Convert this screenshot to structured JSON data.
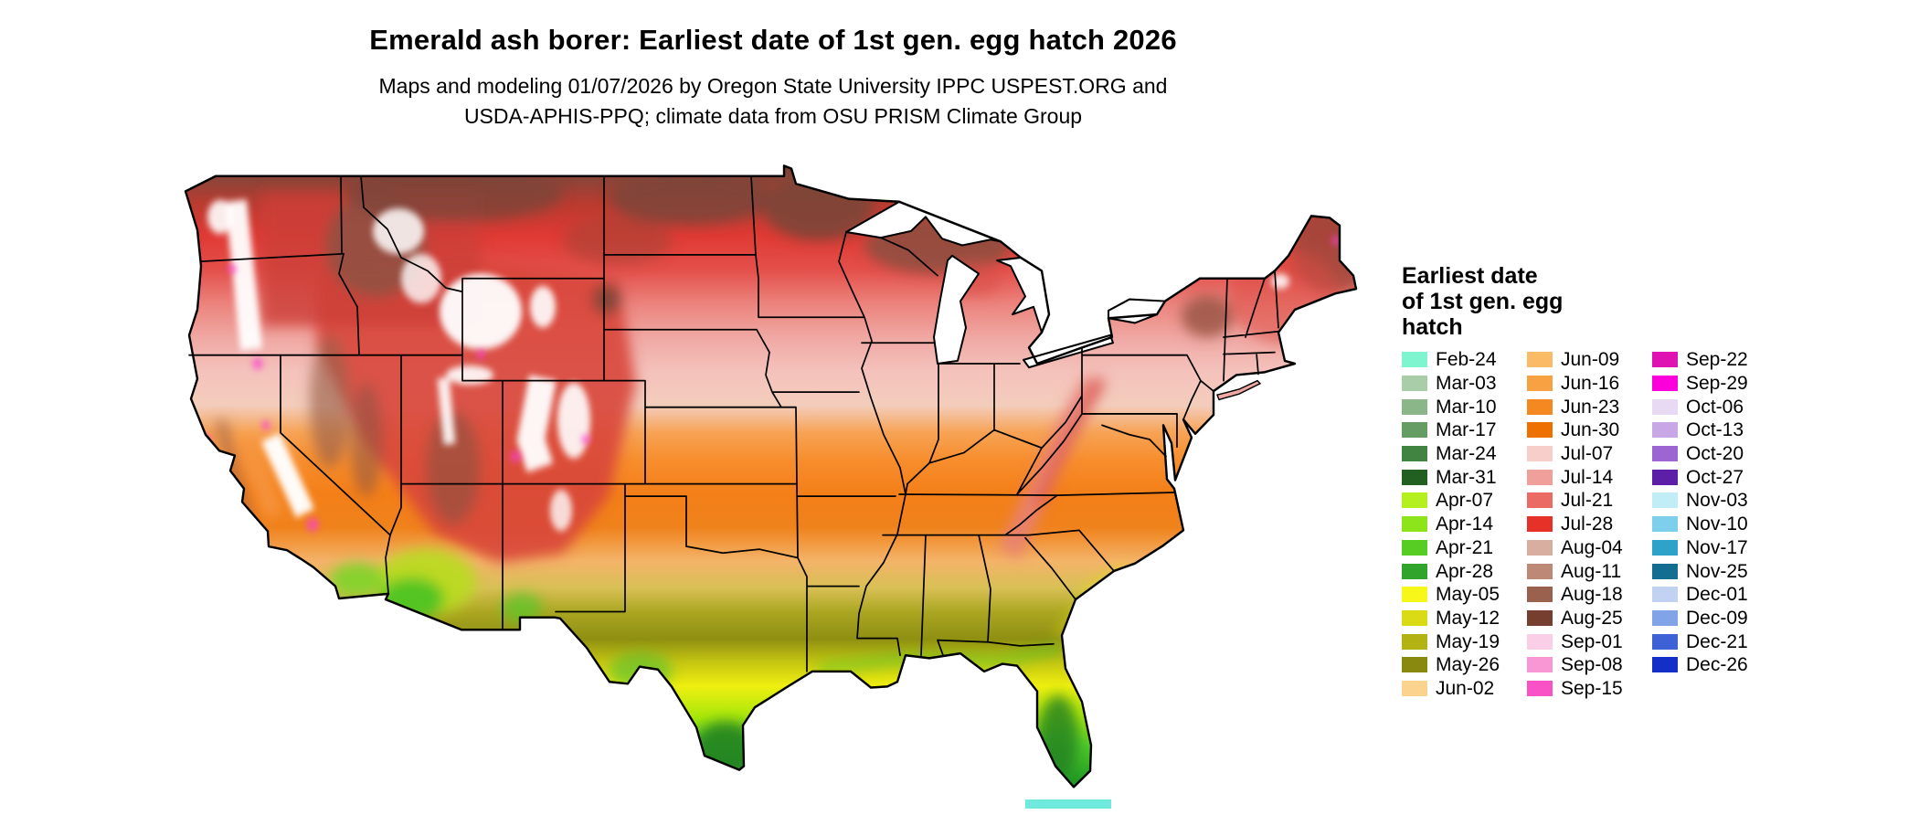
{
  "header": {
    "title": "Emerald ash borer: Earliest date of 1st gen. egg hatch 2026",
    "subtitle_line1": "Maps and modeling 01/07/2026 by Oregon State University IPPC USPEST.ORG and",
    "subtitle_line2": "USDA-APHIS-PPQ; climate data from OSU PRISM Climate Group"
  },
  "map": {
    "region": "Continental United States",
    "kind": "gridded raster map of earliest egg-hatch date, colored by legend dates"
  },
  "legend": {
    "title_lines": [
      "Earliest date",
      "of 1st gen. egg",
      "hatch"
    ],
    "columns": [
      {
        "entries": [
          {
            "label": "Feb-24",
            "color": "#7EF4CF"
          },
          {
            "label": "Mar-03",
            "color": "#A9CCA9"
          },
          {
            "label": "Mar-10",
            "color": "#8AB68A"
          },
          {
            "label": "Mar-17",
            "color": "#659D65"
          },
          {
            "label": "Mar-24",
            "color": "#418441"
          },
          {
            "label": "Mar-31",
            "color": "#226022"
          },
          {
            "label": "Apr-07",
            "color": "#B4F01F"
          },
          {
            "label": "Apr-14",
            "color": "#8DE41B"
          },
          {
            "label": "Apr-21",
            "color": "#57CD23"
          },
          {
            "label": "Apr-28",
            "color": "#30A42B"
          },
          {
            "label": "May-05",
            "color": "#F7F719"
          },
          {
            "label": "May-12",
            "color": "#DBDB15"
          },
          {
            "label": "May-19",
            "color": "#B2B212"
          },
          {
            "label": "May-26",
            "color": "#89890F"
          },
          {
            "label": "Jun-02",
            "color": "#FBD28E"
          }
        ]
      },
      {
        "entries": [
          {
            "label": "Jun-09",
            "color": "#FABB67"
          },
          {
            "label": "Jun-16",
            "color": "#F8A142"
          },
          {
            "label": "Jun-23",
            "color": "#F68821"
          },
          {
            "label": "Jun-30",
            "color": "#EE7000"
          },
          {
            "label": "Jul-07",
            "color": "#F8CECA"
          },
          {
            "label": "Jul-14",
            "color": "#F19F9A"
          },
          {
            "label": "Jul-21",
            "color": "#EB6A63"
          },
          {
            "label": "Jul-28",
            "color": "#E53128"
          },
          {
            "label": "Aug-04",
            "color": "#D8AEA1"
          },
          {
            "label": "Aug-11",
            "color": "#BD8876"
          },
          {
            "label": "Aug-18",
            "color": "#9B614F"
          },
          {
            "label": "Aug-25",
            "color": "#753E2E"
          },
          {
            "label": "Sep-01",
            "color": "#FBCEE7"
          },
          {
            "label": "Sep-08",
            "color": "#F897D3"
          },
          {
            "label": "Sep-15",
            "color": "#F951C6"
          }
        ]
      },
      {
        "entries": [
          {
            "label": "Sep-22",
            "color": "#DF13B2"
          },
          {
            "label": "Sep-29",
            "color": "#FC00DB"
          },
          {
            "label": "Oct-06",
            "color": "#E9DAF4"
          },
          {
            "label": "Oct-13",
            "color": "#C8A7E7"
          },
          {
            "label": "Oct-20",
            "color": "#9C65D2"
          },
          {
            "label": "Oct-27",
            "color": "#5D1FA7"
          },
          {
            "label": "Nov-03",
            "color": "#C1EDF7"
          },
          {
            "label": "Nov-10",
            "color": "#7ECFEB"
          },
          {
            "label": "Nov-17",
            "color": "#2EA2C8"
          },
          {
            "label": "Nov-25",
            "color": "#146E92"
          },
          {
            "label": "Dec-01",
            "color": "#C2D2F2"
          },
          {
            "label": "Dec-09",
            "color": "#81A3E7"
          },
          {
            "label": "Dec-21",
            "color": "#3E62D5"
          },
          {
            "label": "Dec-26",
            "color": "#132FC7"
          }
        ]
      }
    ]
  },
  "colors": {
    "background": "#FFFFFF",
    "map_outline": "#000000",
    "bottom_partial_strip": "#6FE9DC"
  }
}
